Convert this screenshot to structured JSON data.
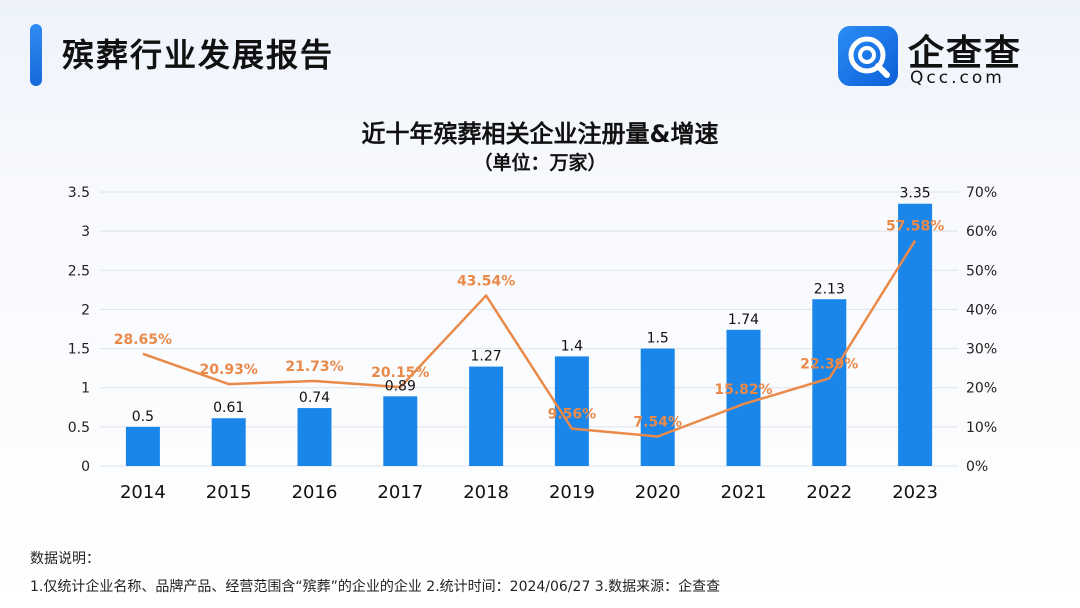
{
  "header": {
    "title": "殡葬行业发展报告"
  },
  "logo": {
    "name": "企查查",
    "domain": "Qcc.com",
    "icon": "qcc-logo-icon"
  },
  "chart_data": {
    "type": "bar",
    "title": "近十年殡葬相关企业注册量&增速",
    "subtitle": "（单位：万家）",
    "categories": [
      "2014",
      "2015",
      "2016",
      "2017",
      "2018",
      "2019",
      "2020",
      "2021",
      "2022",
      "2023"
    ],
    "series": [
      {
        "type": "bar",
        "axis": "left",
        "color": "#1a86ea",
        "values": [
          0.5,
          0.61,
          0.74,
          0.89,
          1.27,
          1.4,
          1.5,
          1.74,
          2.13,
          3.35
        ],
        "labels": [
          "0.5",
          "0.61",
          "0.74",
          "0.89",
          "1.27",
          "1.4",
          "1.5",
          "1.74",
          "2.13",
          "3.35"
        ]
      },
      {
        "type": "line",
        "axis": "right",
        "color": "#ea8a4a",
        "values": [
          28.65,
          20.93,
          21.73,
          20.15,
          43.54,
          9.56,
          7.54,
          15.82,
          22.39,
          57.58
        ],
        "labels": [
          "28.65%",
          "20.93%",
          "21.73%",
          "20.15%",
          "43.54%",
          "9.56%",
          "7.54%",
          "15.82%",
          "22.39%",
          "57.58%"
        ]
      }
    ],
    "y_left": {
      "min": 0,
      "max": 3.5,
      "ticks": [
        "0",
        "0.5",
        "1",
        "1.5",
        "2",
        "2.5",
        "3",
        "3.5"
      ]
    },
    "y_right": {
      "min": 0,
      "max": 70,
      "ticks": [
        "0%",
        "10%",
        "20%",
        "30%",
        "40%",
        "50%",
        "60%",
        "70%"
      ]
    },
    "grid": true,
    "legend": "none"
  },
  "notes": {
    "title": "数据说明：",
    "line": "1.仅统计企业名称、品牌产品、经营范围含“殡葬”的企业的企业  2.统计时间：2024/06/27   3.数据来源：企查查"
  }
}
